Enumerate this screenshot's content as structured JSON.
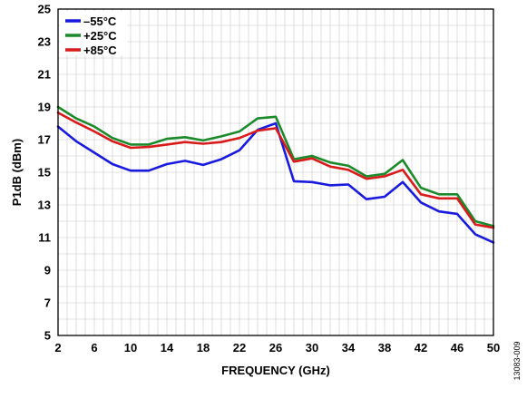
{
  "chart_data": {
    "type": "line",
    "xlabel": "FREQUENCY (GHz)",
    "ylabel": "P1dB (dBm)",
    "xlim": [
      2,
      50
    ],
    "ylim": [
      5,
      25
    ],
    "xticks": [
      2,
      6,
      10,
      14,
      18,
      22,
      26,
      30,
      34,
      38,
      42,
      46,
      50
    ],
    "yticks": [
      5,
      7,
      9,
      11,
      13,
      15,
      17,
      19,
      21,
      23,
      25
    ],
    "grid": true,
    "legend_position": "top-left",
    "figure_id": "13083-009",
    "x": [
      2,
      4,
      6,
      8,
      10,
      12,
      14,
      16,
      18,
      20,
      22,
      24,
      26,
      28,
      30,
      32,
      34,
      36,
      38,
      40,
      42,
      44,
      46,
      48,
      50
    ],
    "series": [
      {
        "name": "–55°C",
        "color": "#1a1adf",
        "values": [
          17.8,
          16.9,
          16.2,
          15.5,
          15.1,
          15.1,
          15.5,
          15.7,
          15.45,
          15.8,
          16.35,
          17.6,
          18.0,
          14.45,
          14.4,
          14.2,
          14.25,
          13.35,
          13.5,
          14.4,
          13.15,
          12.6,
          12.45,
          11.2,
          10.7
        ]
      },
      {
        "name": "+25°C",
        "color": "#1b8a2b",
        "values": [
          19.0,
          18.3,
          17.8,
          17.1,
          16.7,
          16.7,
          17.05,
          17.15,
          16.95,
          17.2,
          17.5,
          18.3,
          18.4,
          15.8,
          16.0,
          15.6,
          15.4,
          14.75,
          14.9,
          15.75,
          14.05,
          13.65,
          13.65,
          12.0,
          11.7
        ]
      },
      {
        "name": "+85°C",
        "color": "#d81b1b",
        "values": [
          18.65,
          18.05,
          17.5,
          16.9,
          16.5,
          16.55,
          16.7,
          16.85,
          16.75,
          16.85,
          17.1,
          17.55,
          17.7,
          15.65,
          15.85,
          15.35,
          15.15,
          14.6,
          14.75,
          15.15,
          13.65,
          13.4,
          13.4,
          11.8,
          11.6
        ]
      }
    ]
  }
}
